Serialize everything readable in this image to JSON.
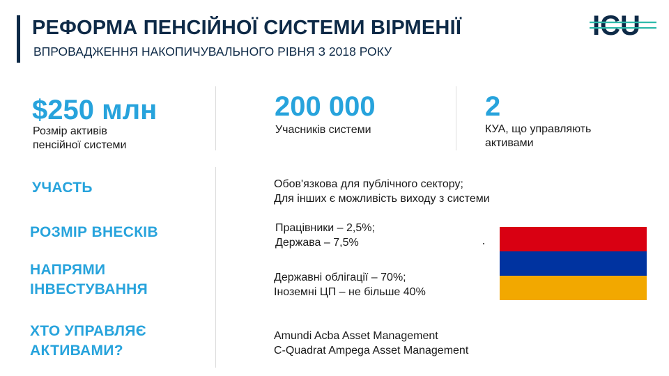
{
  "header": {
    "title": "РЕФОРМА ПЕНСІЙНОЇ СИСТЕМИ ВІРМЕНІЇ",
    "subtitle": "ВПРОВАДЖЕННЯ НАКОПИЧУВАЛЬНОГО РІВНЯ З 2018 РОКУ",
    "logo_text": "ICU",
    "logo_color": "#0e2a47",
    "logo_accent": "#2bb9a9"
  },
  "stats": [
    {
      "value": "$250 млн",
      "label_lines": [
        "Розмір активів",
        "пенсійної системи"
      ]
    },
    {
      "value": "200 000",
      "label_lines": [
        "Учасників системи"
      ]
    },
    {
      "value": "2",
      "label_lines": [
        "КУА, що управляють",
        "активами"
      ]
    }
  ],
  "rows": [
    {
      "label_lines": [
        "УЧАСТЬ"
      ],
      "value_lines": [
        "Обов'язкова для публічного сектору;",
        "Для інших є можливість виходу з системи"
      ]
    },
    {
      "label_lines": [
        "РОЗМІР ВНЕСКІВ"
      ],
      "value_lines": [
        "Працівники – 2,5%;",
        "Держава – 7,5%"
      ]
    },
    {
      "label_lines": [
        "НАПРЯМИ",
        "ІНВЕСТУВАННЯ"
      ],
      "value_lines": [
        "Державні облігації – 70%;",
        "Іноземні ЦП – не більше 40%"
      ]
    },
    {
      "label_lines": [
        "ХТО УПРАВЛЯЄ",
        "АКТИВАМИ?"
      ],
      "value_lines": [
        "Amundi Acba Asset Management",
        "C-Quadrat Ampega Asset Management"
      ]
    }
  ],
  "colors": {
    "accent": "#27a3dc",
    "navy": "#0e2a47",
    "flag": [
      "#d90012",
      "#0033a0",
      "#f2a800"
    ]
  },
  "flag": {
    "name": "armenia-flag",
    "icon": "armenia-flag-icon"
  }
}
